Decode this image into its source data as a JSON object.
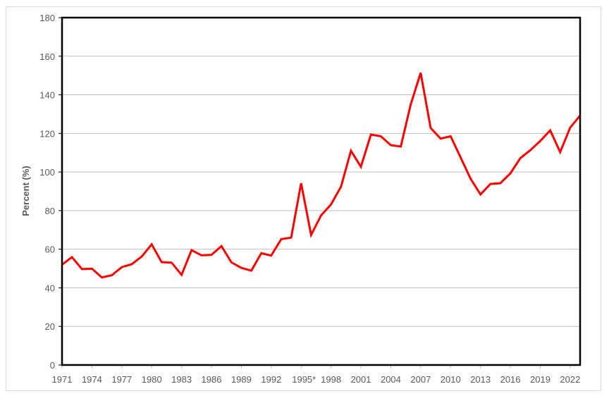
{
  "chart_data": {
    "type": "line",
    "title": "",
    "xlabel": "",
    "ylabel": "Percent (%)",
    "ylim": [
      0,
      180
    ],
    "yticks": [
      0,
      20,
      40,
      60,
      80,
      100,
      120,
      140,
      160,
      180
    ],
    "grid": true,
    "legend": null,
    "x_tick_labels": [
      "1971",
      "1974",
      "1977",
      "1980",
      "1983",
      "1986",
      "1989",
      "1992",
      "1995*",
      "1998",
      "2001",
      "2004",
      "2007",
      "2010",
      "2013",
      "2016",
      "2019",
      "2022"
    ],
    "x": [
      1971,
      1972,
      1973,
      1974,
      1975,
      1976,
      1977,
      1978,
      1979,
      1980,
      1981,
      1982,
      1983,
      1984,
      1985,
      1986,
      1987,
      1988,
      1989,
      1990,
      1991,
      1992,
      1993,
      1994,
      1995,
      1996,
      1997,
      1998,
      1999,
      2000,
      2001,
      2002,
      2003,
      2004,
      2005,
      2006,
      2007,
      2008,
      2009,
      2010,
      2011,
      2012,
      2013,
      2014,
      2015,
      2016,
      2017,
      2018,
      2019,
      2020,
      2021,
      2022,
      2023
    ],
    "series": [
      {
        "name": "Percent",
        "color": "#ff0000",
        "values": [
          52.0,
          55.9,
          49.7,
          49.9,
          45.4,
          46.5,
          50.7,
          52.2,
          56.2,
          62.5,
          53.3,
          53.0,
          46.7,
          59.5,
          56.8,
          57.1,
          61.6,
          53.2,
          50.3,
          48.9,
          57.9,
          56.7,
          65.2,
          66.0,
          94.2,
          67.4,
          77.5,
          83.2,
          92.4,
          111.0,
          102.7,
          119.4,
          118.5,
          113.9,
          113.2,
          135.0,
          151.4,
          122.8,
          117.3,
          118.5,
          107.6,
          96.6,
          88.4,
          93.8,
          94.2,
          99.3,
          107.2,
          111.3,
          116.1,
          121.6,
          110.3,
          123.0,
          129.2
        ]
      }
    ]
  }
}
